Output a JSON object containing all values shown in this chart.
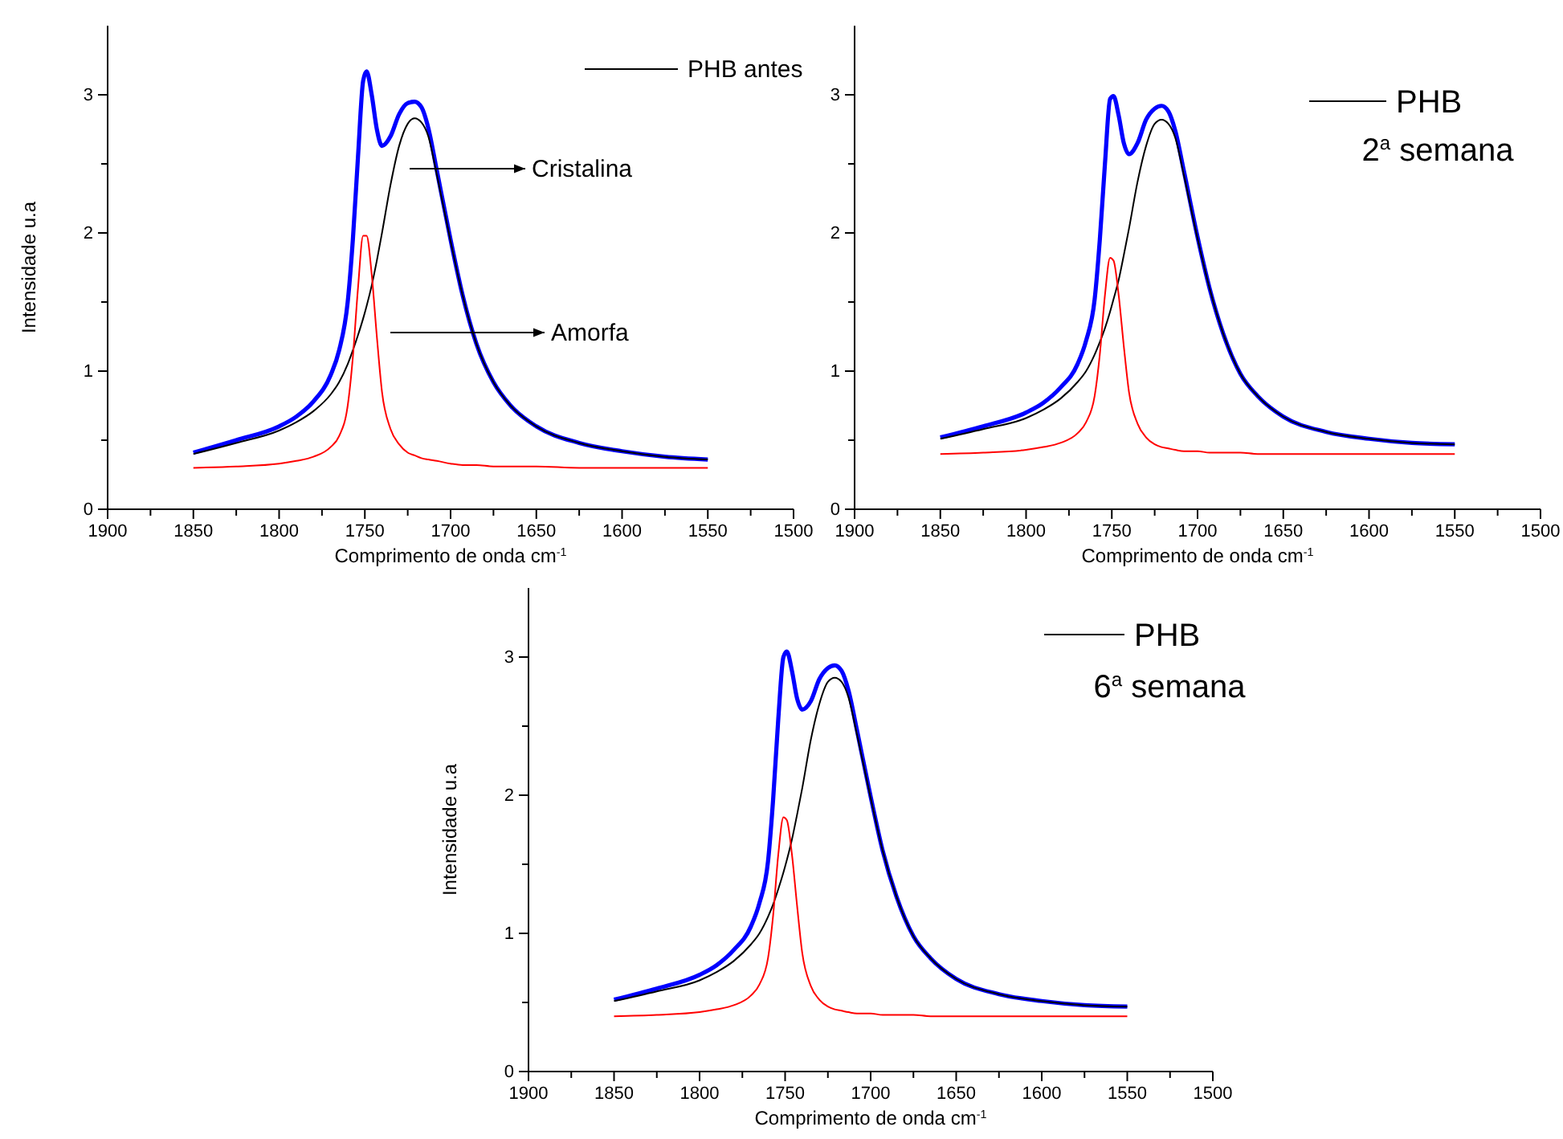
{
  "chart_data": [
    {
      "type": "line",
      "title": "PHB antes",
      "xlabel": "Comprimento de onda cm$^{-1}$",
      "ylabel": "Intensidade u.a",
      "x": [
        1850,
        1825,
        1800,
        1790,
        1780,
        1770,
        1765,
        1760,
        1757,
        1754,
        1751,
        1749,
        1746,
        1743,
        1740,
        1735,
        1730,
        1725,
        1721,
        1717,
        1713,
        1708,
        1700,
        1693,
        1685,
        1675,
        1665,
        1650,
        1625,
        1600,
        1575,
        1550
      ],
      "series": [
        {
          "color": "#0000ff",
          "values": [
            0.41,
            0.5,
            0.6,
            0.67,
            0.78,
            0.97,
            1.15,
            1.5,
            1.95,
            2.55,
            3.1,
            3.17,
            3.0,
            2.75,
            2.63,
            2.7,
            2.86,
            2.94,
            2.95,
            2.91,
            2.76,
            2.45,
            1.95,
            1.55,
            1.2,
            0.92,
            0.75,
            0.6,
            0.48,
            0.42,
            0.38,
            0.36
          ]
        },
        {
          "color": "#000000",
          "values": [
            0.4,
            0.48,
            0.57,
            0.63,
            0.71,
            0.83,
            0.92,
            1.05,
            1.15,
            1.26,
            1.38,
            1.47,
            1.62,
            1.8,
            2.0,
            2.35,
            2.63,
            2.79,
            2.83,
            2.8,
            2.7,
            2.42,
            1.94,
            1.55,
            1.2,
            0.92,
            0.75,
            0.6,
            0.48,
            0.42,
            0.38,
            0.36
          ]
        },
        {
          "color": "#ff0000",
          "values": [
            0.3,
            0.31,
            0.33,
            0.35,
            0.38,
            0.45,
            0.53,
            0.75,
            1.1,
            1.6,
            1.98,
            1.98,
            1.7,
            1.25,
            0.85,
            0.58,
            0.47,
            0.41,
            0.39,
            0.37,
            0.36,
            0.35,
            0.33,
            0.32,
            0.32,
            0.31,
            0.31,
            0.31,
            0.3,
            0.3,
            0.3,
            0.3
          ]
        }
      ],
      "annotations": [
        "Cristalina",
        "Amorfa"
      ],
      "xlim": [
        1900,
        1500
      ],
      "xticks": [
        1900,
        {
          "value": 1875,
          "label": null
        },
        1850,
        {
          "value": 1825,
          "label": null
        },
        1800,
        {
          "value": 1775,
          "label": null
        },
        1750,
        {
          "value": 1725,
          "label": null
        },
        1700,
        {
          "value": 1675,
          "label": null
        },
        1650,
        {
          "value": 1625,
          "label": null
        },
        1600,
        {
          "value": 1575,
          "label": null
        },
        1550,
        {
          "value": 1525,
          "label": null
        },
        1500
      ],
      "ylim": [
        0,
        3.5
      ],
      "yticks": [
        0,
        {
          "value": 0.5,
          "label": null
        },
        1,
        {
          "value": 1.5,
          "label": null
        },
        2,
        {
          "value": 2.5,
          "label": null
        },
        3
      ],
      "marker": "none",
      "line_style": "solid"
    },
    {
      "type": "line",
      "title": "PHB",
      "subtitle": "2$^{a}$ semana",
      "xlabel": "Comprimento de onda cm$^{-1}$",
      "x": [
        1850,
        1825,
        1800,
        1790,
        1780,
        1770,
        1765,
        1760,
        1757,
        1754,
        1751,
        1749,
        1746,
        1743,
        1740,
        1735,
        1730,
        1725,
        1721,
        1717,
        1713,
        1708,
        1700,
        1693,
        1685,
        1675,
        1665,
        1650,
        1625,
        1600,
        1575,
        1550
      ],
      "series": [
        {
          "color": "#0000ff",
          "values": [
            0.52,
            0.6,
            0.7,
            0.77,
            0.88,
            1.05,
            1.22,
            1.52,
            1.95,
            2.5,
            2.97,
            2.99,
            2.85,
            2.65,
            2.57,
            2.65,
            2.82,
            2.9,
            2.92,
            2.88,
            2.74,
            2.45,
            1.97,
            1.6,
            1.27,
            0.98,
            0.82,
            0.67,
            0.56,
            0.51,
            0.48,
            0.47
          ]
        },
        {
          "color": "#000000",
          "values": [
            0.51,
            0.58,
            0.66,
            0.72,
            0.8,
            0.92,
            1.0,
            1.12,
            1.21,
            1.31,
            1.43,
            1.52,
            1.66,
            1.84,
            2.03,
            2.37,
            2.63,
            2.79,
            2.82,
            2.79,
            2.69,
            2.42,
            1.96,
            1.6,
            1.27,
            0.98,
            0.82,
            0.67,
            0.56,
            0.51,
            0.48,
            0.47
          ]
        },
        {
          "color": "#ff0000",
          "values": [
            0.4,
            0.41,
            0.43,
            0.45,
            0.48,
            0.55,
            0.63,
            0.82,
            1.12,
            1.55,
            1.82,
            1.8,
            1.55,
            1.18,
            0.85,
            0.62,
            0.52,
            0.47,
            0.45,
            0.44,
            0.43,
            0.42,
            0.42,
            0.41,
            0.41,
            0.41,
            0.4,
            0.4,
            0.4,
            0.4,
            0.4,
            0.4
          ]
        }
      ],
      "xlim": [
        1900,
        1500
      ],
      "xticks": [
        1900,
        {
          "value": 1875,
          "label": null
        },
        1850,
        {
          "value": 1825,
          "label": null
        },
        1800,
        {
          "value": 1775,
          "label": null
        },
        1750,
        {
          "value": 1725,
          "label": null
        },
        1700,
        {
          "value": 1675,
          "label": null
        },
        1650,
        {
          "value": 1625,
          "label": null
        },
        1600,
        {
          "value": 1575,
          "label": null
        },
        1550,
        {
          "value": 1525,
          "label": null
        },
        1500
      ],
      "ylim": [
        0,
        3.5
      ],
      "yticks": [
        0,
        {
          "value": 0.5,
          "label": null
        },
        1,
        {
          "value": 1.5,
          "label": null
        },
        2,
        {
          "value": 2.5,
          "label": null
        },
        3
      ],
      "marker": "none",
      "line_style": "solid"
    },
    {
      "type": "line",
      "title": "PHB",
      "subtitle": "6$^{a}$ semana",
      "xlabel": "Comprimento de onda cm$^{-1}$",
      "ylabel": "Intensidade u.a",
      "x": [
        1850,
        1825,
        1800,
        1790,
        1780,
        1770,
        1765,
        1760,
        1757,
        1754,
        1751,
        1749,
        1746,
        1743,
        1740,
        1735,
        1730,
        1725,
        1721,
        1717,
        1713,
        1708,
        1700,
        1693,
        1685,
        1675,
        1665,
        1650,
        1625,
        1600,
        1575,
        1550
      ],
      "series": [
        {
          "color": "#0000ff",
          "values": [
            0.52,
            0.6,
            0.7,
            0.77,
            0.88,
            1.05,
            1.22,
            1.52,
            1.97,
            2.55,
            3.0,
            3.04,
            2.9,
            2.7,
            2.62,
            2.68,
            2.84,
            2.92,
            2.94,
            2.9,
            2.76,
            2.47,
            1.99,
            1.6,
            1.27,
            0.98,
            0.82,
            0.67,
            0.56,
            0.51,
            0.48,
            0.47
          ]
        },
        {
          "color": "#000000",
          "values": [
            0.51,
            0.58,
            0.66,
            0.72,
            0.8,
            0.92,
            1.0,
            1.12,
            1.21,
            1.32,
            1.44,
            1.53,
            1.68,
            1.86,
            2.05,
            2.4,
            2.66,
            2.82,
            2.85,
            2.82,
            2.71,
            2.44,
            1.98,
            1.6,
            1.27,
            0.98,
            0.82,
            0.67,
            0.56,
            0.51,
            0.48,
            0.47
          ]
        },
        {
          "color": "#ff0000",
          "values": [
            0.4,
            0.41,
            0.43,
            0.45,
            0.48,
            0.55,
            0.63,
            0.82,
            1.13,
            1.57,
            1.84,
            1.82,
            1.57,
            1.2,
            0.86,
            0.62,
            0.52,
            0.47,
            0.45,
            0.44,
            0.43,
            0.42,
            0.42,
            0.41,
            0.41,
            0.41,
            0.4,
            0.4,
            0.4,
            0.4,
            0.4,
            0.4
          ]
        }
      ],
      "xlim": [
        1900,
        1500
      ],
      "xticks": [
        1900,
        {
          "value": 1875,
          "label": null
        },
        1850,
        {
          "value": 1825,
          "label": null
        },
        1800,
        {
          "value": 1775,
          "label": null
        },
        1750,
        {
          "value": 1725,
          "label": null
        },
        1700,
        {
          "value": 1675,
          "label": null
        },
        1650,
        {
          "value": 1625,
          "label": null
        },
        1600,
        {
          "value": 1575,
          "label": null
        },
        1550,
        {
          "value": 1525,
          "label": null
        },
        1500
      ],
      "ylim": [
        0,
        3.5
      ],
      "yticks": [
        0,
        {
          "value": 0.5,
          "label": null
        },
        1,
        {
          "value": 1.5,
          "label": null
        },
        2,
        {
          "value": 2.5,
          "label": null
        },
        3
      ],
      "marker": "none",
      "line_style": "solid"
    }
  ]
}
